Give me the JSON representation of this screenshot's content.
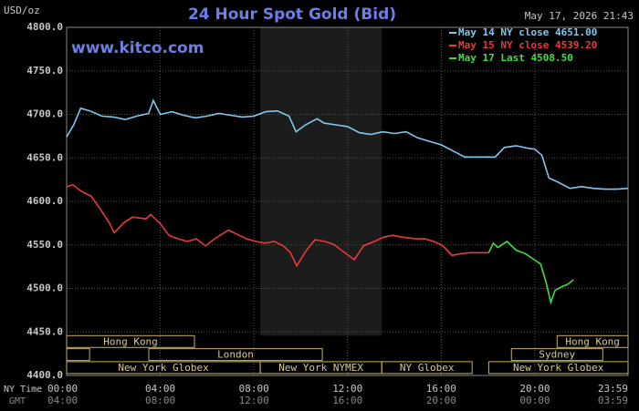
{
  "chart_data": {
    "type": "line",
    "title": "24 Hour Spot Gold (Bid)",
    "unit_label": "USD/oz",
    "timestamp": "May 17, 2026 21:43",
    "watermark": "www.kitco.com",
    "ylim": [
      4400,
      4800
    ],
    "yticks": [
      {
        "value": 4400,
        "label": "4400.0"
      },
      {
        "value": 4450,
        "label": "4450.0"
      },
      {
        "value": 4500,
        "label": "4500.0"
      },
      {
        "value": 4550,
        "label": "4550.0"
      },
      {
        "value": 4600,
        "label": "4600.0"
      },
      {
        "value": 4650,
        "label": "4650.0"
      },
      {
        "value": 4700,
        "label": "4700.0"
      },
      {
        "value": 4750,
        "label": "4750.0"
      },
      {
        "value": 4800,
        "label": "4800.0"
      }
    ],
    "xlim": [
      0,
      23.98
    ],
    "xticks": [
      {
        "value": 0,
        "label": "00:00"
      },
      {
        "value": 4,
        "label": "04:00"
      },
      {
        "value": 8,
        "label": "08:00"
      },
      {
        "value": 12,
        "label": "12:00"
      },
      {
        "value": 16,
        "label": "16:00"
      },
      {
        "value": 20,
        "label": "20:00"
      },
      {
        "value": 23.98,
        "label": "23:59"
      }
    ],
    "gmt_labels": [
      "04:00",
      "08:00",
      "12:00",
      "16:00",
      "20:00",
      "00:00",
      "03:59"
    ],
    "x_rows": [
      "NY Time",
      "GMT"
    ],
    "grid": true,
    "series": [
      {
        "name": "May 14 NY close 4651.00",
        "color": "#7ec8f0",
        "x": [
          0,
          0.3,
          0.6,
          1,
          1.5,
          2,
          2.5,
          3,
          3.5,
          3.7,
          4,
          4.5,
          5,
          5.5,
          6,
          6.5,
          7,
          7.5,
          8,
          8.5,
          9,
          9.5,
          9.8,
          10.2,
          10.7,
          11,
          11.5,
          12,
          12.5,
          13,
          13.5,
          14,
          14.5,
          15,
          15.5,
          16,
          16.5,
          17,
          17.5,
          18,
          18.3,
          18.7,
          19.2,
          19.7,
          20,
          20.3,
          20.6,
          21,
          21.5,
          22,
          22.5,
          23,
          23.5,
          23.98
        ],
        "values": [
          4674,
          4688,
          4707,
          4704,
          4698,
          4697,
          4694,
          4698,
          4701,
          4716,
          4700,
          4703,
          4699,
          4696,
          4698,
          4701,
          4699,
          4697,
          4698,
          4703,
          4704,
          4698,
          4680,
          4688,
          4695,
          4690,
          4688,
          4686,
          4679,
          4677,
          4680,
          4678,
          4680,
          4673,
          4669,
          4665,
          4658,
          4651,
          4651,
          4651,
          4651,
          4662,
          4664,
          4661,
          4660,
          4653,
          4627,
          4622,
          4615,
          4617,
          4615,
          4614,
          4614,
          4615
        ]
      },
      {
        "name": "May 15 NY close 4539.20",
        "color": "#e83a3a",
        "x": [
          0,
          0.27,
          0.66,
          1.05,
          1.44,
          1.83,
          2.03,
          2.42,
          2.81,
          3.39,
          3.59,
          3.98,
          4.37,
          4.76,
          5.15,
          5.54,
          5.93,
          6.32,
          6.91,
          7.3,
          7.69,
          8.08,
          8.47,
          8.86,
          9.25,
          9.56,
          9.83,
          10.22,
          10.61,
          11,
          11.39,
          11.78,
          12.29,
          12.68,
          13.15,
          13.54,
          13.93,
          14.32,
          14.9,
          15.29,
          15.68,
          16.07,
          16.46,
          16.86,
          17.25,
          18.03
        ],
        "values": [
          4617,
          4619,
          4611,
          4606,
          4591,
          4575,
          4564,
          4575,
          4582,
          4580,
          4585,
          4575,
          4561,
          4557,
          4554,
          4557,
          4549,
          4557,
          4567,
          4562,
          4557,
          4554,
          4552,
          4554,
          4549,
          4541,
          4526,
          4543,
          4556,
          4554,
          4551,
          4543,
          4533,
          4549,
          4554,
          4559,
          4561,
          4559,
          4557,
          4557,
          4554,
          4549,
          4538,
          4540,
          4541,
          4541
        ]
      },
      {
        "name": "May 17 Last 4508.50",
        "color": "#3ee03e",
        "x": [
          18.03,
          18.22,
          18.42,
          18.81,
          19.2,
          19.59,
          19.98,
          20.25,
          20.48,
          20.68,
          20.87,
          21.15,
          21.42,
          21.65
        ],
        "values": [
          4541,
          4552,
          4547,
          4554,
          4544,
          4540,
          4533,
          4528,
          4507,
          4484,
          4498,
          4502,
          4505,
          4510
        ]
      }
    ],
    "sessions": [
      {
        "label": "Hong Kong",
        "start": 0,
        "end": 5.46,
        "row": 1
      },
      {
        "start": 0,
        "end": 0.98,
        "row": 2
      },
      {
        "label": "London",
        "start": 3.51,
        "end": 10.92,
        "row": 2
      },
      {
        "label": "New York Globex",
        "start": 0,
        "end": 8.27,
        "row": 3
      },
      {
        "label": "New York NYMEX",
        "start": 8.27,
        "end": 13.46,
        "row": 3,
        "shaded": true
      },
      {
        "label": "NY Globex",
        "start": 13.46,
        "end": 17.32,
        "row": 3
      },
      {
        "label": "Hong Kong",
        "start": 20.95,
        "end": 23.98,
        "row": 1
      },
      {
        "label": "Sydney",
        "start": 19.0,
        "end": 22.9,
        "row": 2
      },
      {
        "label": "New York Globex",
        "start": 18.03,
        "end": 23.98,
        "row": 3
      }
    ]
  }
}
